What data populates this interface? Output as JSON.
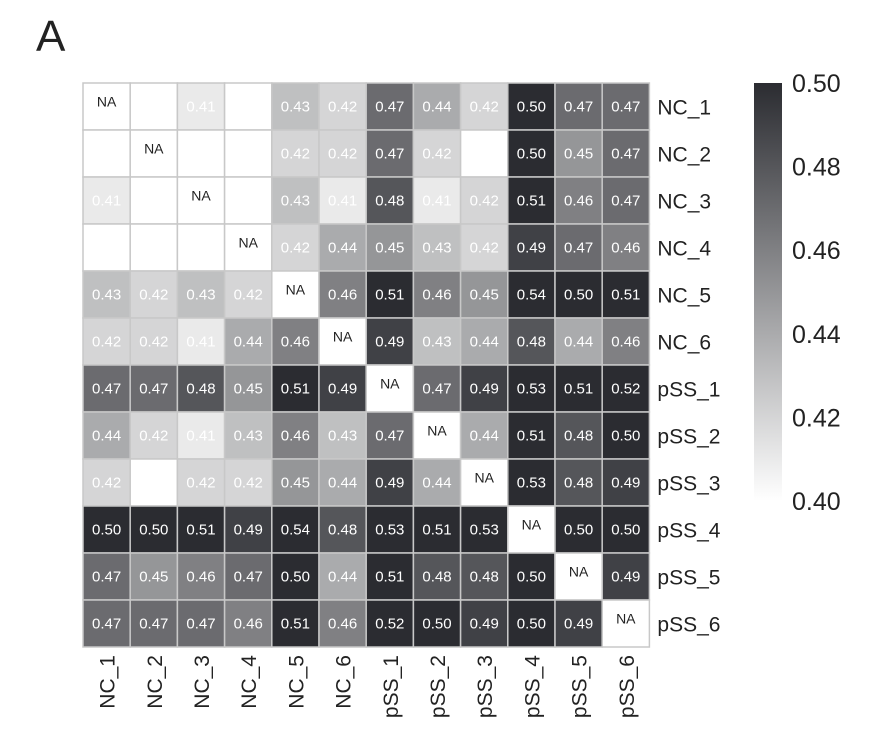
{
  "panel_label": "A",
  "chart_data": {
    "type": "heatmap",
    "title": "",
    "rows": [
      "NC_1",
      "NC_2",
      "NC_3",
      "NC_4",
      "NC_5",
      "NC_6",
      "pSS_1",
      "pSS_2",
      "pSS_3",
      "pSS_4",
      "pSS_5",
      "pSS_6"
    ],
    "columns": [
      "NC_1",
      "NC_2",
      "NC_3",
      "NC_4",
      "NC_5",
      "NC_6",
      "pSS_1",
      "pSS_2",
      "pSS_3",
      "pSS_4",
      "pSS_5",
      "pSS_6"
    ],
    "values": [
      [
        null,
        0.4,
        0.41,
        0.4,
        0.43,
        0.42,
        0.47,
        0.44,
        0.42,
        0.5,
        0.47,
        0.47
      ],
      [
        0.4,
        null,
        0.4,
        0.4,
        0.42,
        0.42,
        0.47,
        0.42,
        0.4,
        0.5,
        0.45,
        0.47
      ],
      [
        0.41,
        0.4,
        null,
        0.4,
        0.43,
        0.41,
        0.48,
        0.41,
        0.42,
        0.51,
        0.46,
        0.47
      ],
      [
        0.4,
        0.4,
        0.4,
        null,
        0.42,
        0.44,
        0.45,
        0.43,
        0.42,
        0.49,
        0.47,
        0.46
      ],
      [
        0.43,
        0.42,
        0.43,
        0.42,
        null,
        0.46,
        0.51,
        0.46,
        0.45,
        0.54,
        0.5,
        0.51
      ],
      [
        0.42,
        0.42,
        0.41,
        0.44,
        0.46,
        null,
        0.49,
        0.43,
        0.44,
        0.48,
        0.44,
        0.46
      ],
      [
        0.47,
        0.47,
        0.48,
        0.45,
        0.51,
        0.49,
        null,
        0.47,
        0.49,
        0.53,
        0.51,
        0.52
      ],
      [
        0.44,
        0.42,
        0.41,
        0.43,
        0.46,
        0.43,
        0.47,
        null,
        0.44,
        0.51,
        0.48,
        0.5
      ],
      [
        0.42,
        0.4,
        0.42,
        0.42,
        0.45,
        0.44,
        0.49,
        0.44,
        null,
        0.53,
        0.48,
        0.49
      ],
      [
        0.5,
        0.5,
        0.51,
        0.49,
        0.54,
        0.48,
        0.53,
        0.51,
        0.53,
        null,
        0.5,
        0.5
      ],
      [
        0.47,
        0.45,
        0.46,
        0.47,
        0.5,
        0.44,
        0.51,
        0.48,
        0.48,
        0.5,
        null,
        0.49
      ],
      [
        0.47,
        0.47,
        0.47,
        0.46,
        0.51,
        0.46,
        0.52,
        0.5,
        0.49,
        0.5,
        0.49,
        null
      ]
    ],
    "label_visible": [
      [
        true,
        false,
        true,
        false,
        true,
        true,
        true,
        true,
        true,
        true,
        true,
        true
      ],
      [
        false,
        true,
        false,
        false,
        true,
        true,
        true,
        true,
        false,
        true,
        true,
        true
      ],
      [
        true,
        false,
        true,
        false,
        true,
        true,
        true,
        true,
        true,
        true,
        true,
        true
      ],
      [
        false,
        false,
        false,
        true,
        true,
        true,
        true,
        true,
        true,
        true,
        true,
        true
      ],
      [
        true,
        true,
        true,
        true,
        true,
        true,
        true,
        true,
        true,
        true,
        true,
        true
      ],
      [
        true,
        true,
        true,
        true,
        true,
        true,
        true,
        true,
        true,
        true,
        true,
        true
      ],
      [
        true,
        true,
        true,
        true,
        true,
        true,
        true,
        true,
        true,
        true,
        true,
        true
      ],
      [
        true,
        true,
        true,
        true,
        true,
        true,
        true,
        true,
        true,
        true,
        true,
        true
      ],
      [
        true,
        false,
        true,
        true,
        true,
        true,
        true,
        true,
        true,
        true,
        true,
        true
      ],
      [
        true,
        true,
        true,
        true,
        true,
        true,
        true,
        true,
        true,
        true,
        true,
        true
      ],
      [
        true,
        true,
        true,
        true,
        true,
        true,
        true,
        true,
        true,
        true,
        true,
        true
      ],
      [
        true,
        true,
        true,
        true,
        true,
        true,
        true,
        true,
        true,
        true,
        true,
        true
      ]
    ],
    "na_label": "NA",
    "value_decimals": 2,
    "colorbar": {
      "min": 0.4,
      "max": 0.5,
      "ticks": [
        "0.40",
        "0.42",
        "0.44",
        "0.46",
        "0.48",
        "0.50"
      ],
      "low_color": "#ffffff",
      "high_color": "#2b2c31"
    },
    "grid_color": "#c8c8c8",
    "grid": true,
    "legend_position": "right"
  }
}
